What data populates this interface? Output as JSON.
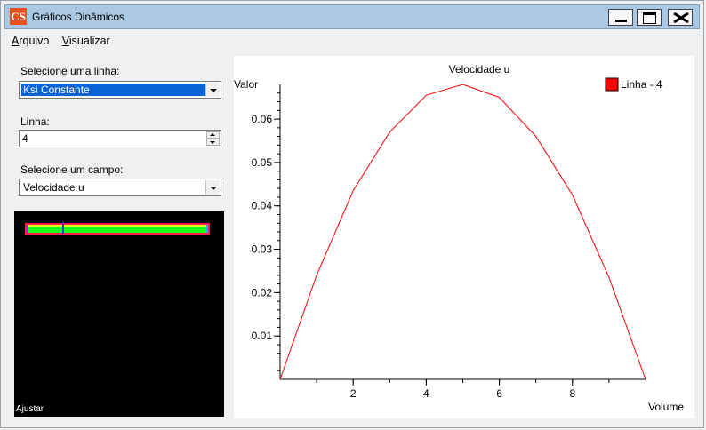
{
  "window": {
    "title": "Gráficos Dinâmicos",
    "icon": "CS",
    "buttons": {
      "minimize": "minimize",
      "maximize": "maximize",
      "close": "close"
    }
  },
  "menu": [
    {
      "label_u": "A",
      "label_rest": "rquivo"
    },
    {
      "label_u": "V",
      "label_rest": "isualizar"
    }
  ],
  "controls": {
    "line_select_label": "Selecione uma linha:",
    "line_select_value": "Ksi Constante",
    "line_label": "Linha:",
    "line_value": "4",
    "field_select_label": "Selecione um campo:",
    "field_select_value": "Velocidade u"
  },
  "preview": {
    "adjust_label": "Ajustar"
  },
  "chart_data": {
    "type": "line",
    "title": "Velocidade u",
    "xlabel": "Volume",
    "ylabel": "Valor",
    "xlim": [
      0,
      10
    ],
    "ylim": [
      0,
      0.068
    ],
    "xticks": [
      2,
      4,
      6,
      8
    ],
    "yticks": [
      0.01,
      0.02,
      0.03,
      0.04,
      0.05,
      0.06
    ],
    "ytick_labels": [
      "0.01",
      "0.02",
      "0.03",
      "0.04",
      "0.05",
      "0.06"
    ],
    "legend_position": "top-right",
    "series": [
      {
        "name": "Linha - 4",
        "color": "#ff0000",
        "x": [
          0,
          1,
          2,
          3,
          4,
          5,
          6,
          7,
          8,
          9,
          10
        ],
        "y": [
          0.0,
          0.024,
          0.0435,
          0.057,
          0.0655,
          0.068,
          0.065,
          0.056,
          0.0425,
          0.0235,
          0.0
        ]
      }
    ]
  }
}
